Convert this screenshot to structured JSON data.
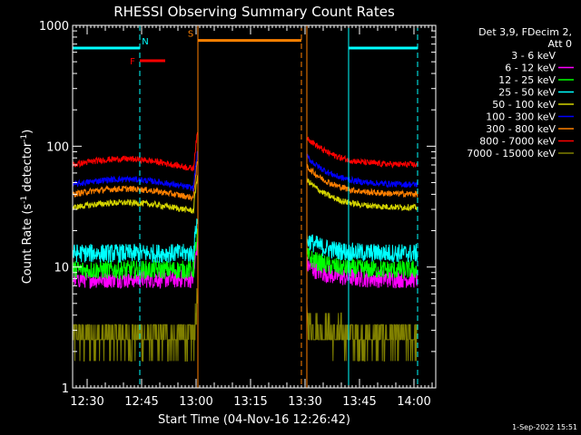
{
  "chart_data": {
    "type": "line",
    "title": "RHESSI Observing Summary Count Rates",
    "xlabel": "Start Time (04-Nov-16 12:26:42)",
    "ylabel_parts": [
      "Count Rate (s",
      "-1",
      " detector",
      "-1",
      ")"
    ],
    "y_scale": "log",
    "ylim": [
      1,
      1000
    ],
    "xlim_minutes_after_1226": [
      0,
      100
    ],
    "y_ticks": [
      {
        "value": 1,
        "label": "1"
      },
      {
        "value": 10,
        "label": "10"
      },
      {
        "value": 100,
        "label": "100"
      },
      {
        "value": 1000,
        "label": "1000"
      }
    ],
    "x_ticks": [
      {
        "t": 4,
        "label": "12:30"
      },
      {
        "t": 19,
        "label": "12:45"
      },
      {
        "t": 34,
        "label": "13:00"
      },
      {
        "t": 49,
        "label": "13:15"
      },
      {
        "t": 64,
        "label": "13:30"
      },
      {
        "t": 79,
        "label": "13:45"
      },
      {
        "t": 94,
        "label": "14:00"
      }
    ],
    "legend_header": [
      "Det 3,9, FDecim 2,",
      "Att 0"
    ],
    "legend_position": "right",
    "series": [
      {
        "name": "3 - 6 keV",
        "color": "#000000",
        "base": 25,
        "hump": 0
      },
      {
        "name": "6 - 12 keV",
        "color": "#ff00ff",
        "base": 8,
        "hump": 0
      },
      {
        "name": "12 - 25 keV",
        "color": "#00ff00",
        "base": 9.5,
        "hump": 0
      },
      {
        "name": "25 - 50 keV",
        "color": "#00ffff",
        "base": 13,
        "hump": 0
      },
      {
        "name": "50 - 100 keV",
        "color": "#d4d400",
        "base": 31,
        "hump": 0.1
      },
      {
        "name": "100 - 300 keV",
        "color": "#0000ff",
        "base": 48,
        "hump": 0.11
      },
      {
        "name": "300 - 800 keV",
        "color": "#ff8000",
        "base": 40,
        "hump": 0.11
      },
      {
        "name": "800 - 7000 keV",
        "color": "#ff0000",
        "base": 70,
        "hump": 0.12
      },
      {
        "name": "7000 - 15000 keV",
        "color": "#808000",
        "base": 2.6,
        "hump": 0
      }
    ],
    "data_segments": [
      {
        "start": 0,
        "end": 34.5
      },
      {
        "start": 64.5,
        "end": 95
      }
    ],
    "flags": [
      {
        "label": "N",
        "color": "#00ffff",
        "start": 0,
        "end": 18.5,
        "value": 650,
        "label_t": 20
      },
      {
        "label": "N",
        "color": "#00ffff",
        "start": 76,
        "end": 95,
        "value": 650
      },
      {
        "label": "F",
        "color": "#ff0000",
        "start": 18.5,
        "end": 25.5,
        "value": 510,
        "label_t": 16.5
      },
      {
        "label": "S",
        "color": "#ff8000",
        "start": 34.5,
        "end": 63,
        "value": 750,
        "label_t": 32.5
      }
    ],
    "vlines": [
      {
        "t": 0,
        "color": "#00ffff",
        "style": "solid"
      },
      {
        "t": 18.5,
        "color": "#00ffff",
        "style": "dashed"
      },
      {
        "t": 34.5,
        "color": "#ff8000",
        "style": "solid"
      },
      {
        "t": 63,
        "color": "#ff8000",
        "style": "dashed"
      },
      {
        "t": 64.5,
        "color": "#ff8000",
        "style": "solid"
      },
      {
        "t": 76,
        "color": "#00ffff",
        "style": "solid"
      },
      {
        "t": 95,
        "color": "#00ffff",
        "style": "dashed"
      }
    ]
  },
  "footer": {
    "date": "1-Sep-2022 15:51"
  }
}
